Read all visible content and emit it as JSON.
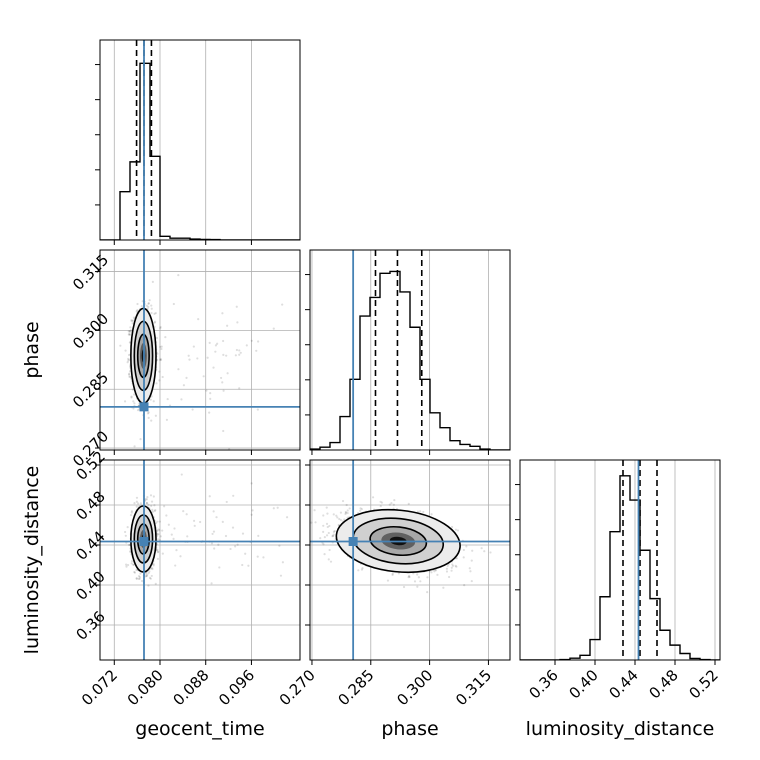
{
  "chart_data": {
    "type": "corner",
    "parameters": [
      {
        "name": "geocent_time",
        "axis_label": "geocent_time",
        "range": [
          0.0695,
          0.1045
        ],
        "ticks": [
          0.072,
          0.08,
          0.088,
          0.096
        ],
        "tick_labels": [
          "0.072",
          "0.080",
          "0.088",
          "0.096"
        ],
        "truth": 0.0772,
        "quantiles": [
          0.0759,
          0.0772,
          0.0785
        ],
        "hist_edges_start": 0.0695,
        "hist_bin_width": 0.00175,
        "hist_counts": [
          0,
          0,
          0.26,
          0.42,
          0.95,
          0.45,
          0.02,
          0.01,
          0.01,
          0.005,
          0.003,
          0.002,
          0,
          0,
          0,
          0,
          0,
          0,
          0,
          0
        ],
        "hist_max": 1.0
      },
      {
        "name": "phase",
        "axis_label": "phase",
        "range": [
          0.2695,
          0.3205
        ],
        "ticks": [
          0.27,
          0.285,
          0.3,
          0.315
        ],
        "tick_labels": [
          "0.270",
          "0.285",
          "0.300",
          "0.315"
        ],
        "truth": 0.2805,
        "quantiles": [
          0.2862,
          0.2918,
          0.298
        ],
        "hist_edges_start": 0.2695,
        "hist_bin_width": 0.00255,
        "hist_counts": [
          0.005,
          0.015,
          0.04,
          0.18,
          0.38,
          0.72,
          0.82,
          0.95,
          0.96,
          0.85,
          0.66,
          0.38,
          0.2,
          0.12,
          0.05,
          0.03,
          0.02,
          0.005,
          0,
          0
        ],
        "hist_max": 1.0
      },
      {
        "name": "luminosity_distance",
        "axis_label": "luminosity_distance",
        "range": [
          0.325,
          0.525
        ],
        "ticks": [
          0.36,
          0.4,
          0.44,
          0.48,
          0.52
        ],
        "tick_labels": [
          "0.36",
          "0.40",
          "0.44",
          "0.48",
          "0.52"
        ],
        "truth": 0.4435,
        "quantiles": [
          0.428,
          0.445,
          0.462
        ],
        "hist_edges_start": 0.325,
        "hist_bin_width": 0.01,
        "hist_counts": [
          0,
          0,
          0,
          0,
          0.002,
          0.01,
          0.025,
          0.11,
          0.34,
          0.69,
          0.99,
          0.86,
          0.59,
          0.33,
          0.16,
          0.08,
          0.035,
          0.008,
          0.002,
          0
        ],
        "hist_max": 1.0
      }
    ],
    "pairs": [
      {
        "x": "geocent_time",
        "y": "phase",
        "mean": [
          0.0771,
          0.2935
        ],
        "sigma": [
          0.001,
          0.0055
        ],
        "contour_radii_sigma": [
          1.0,
          1.6,
          2.2
        ]
      },
      {
        "x": "geocent_time",
        "y": "luminosity_distance",
        "mean": [
          0.0771,
          0.446
        ],
        "sigma": [
          0.001,
          0.015
        ],
        "contour_radii_sigma": [
          1.0,
          1.6,
          2.2
        ]
      },
      {
        "x": "phase",
        "y": "luminosity_distance",
        "mean": [
          0.292,
          0.444
        ],
        "sigma": [
          0.0072,
          0.014
        ],
        "rho": -0.35,
        "contour_radii_sigma": [
          1.0,
          1.6,
          2.2
        ]
      }
    ],
    "grid": true,
    "truth_color": "#4682b4",
    "title": ""
  }
}
